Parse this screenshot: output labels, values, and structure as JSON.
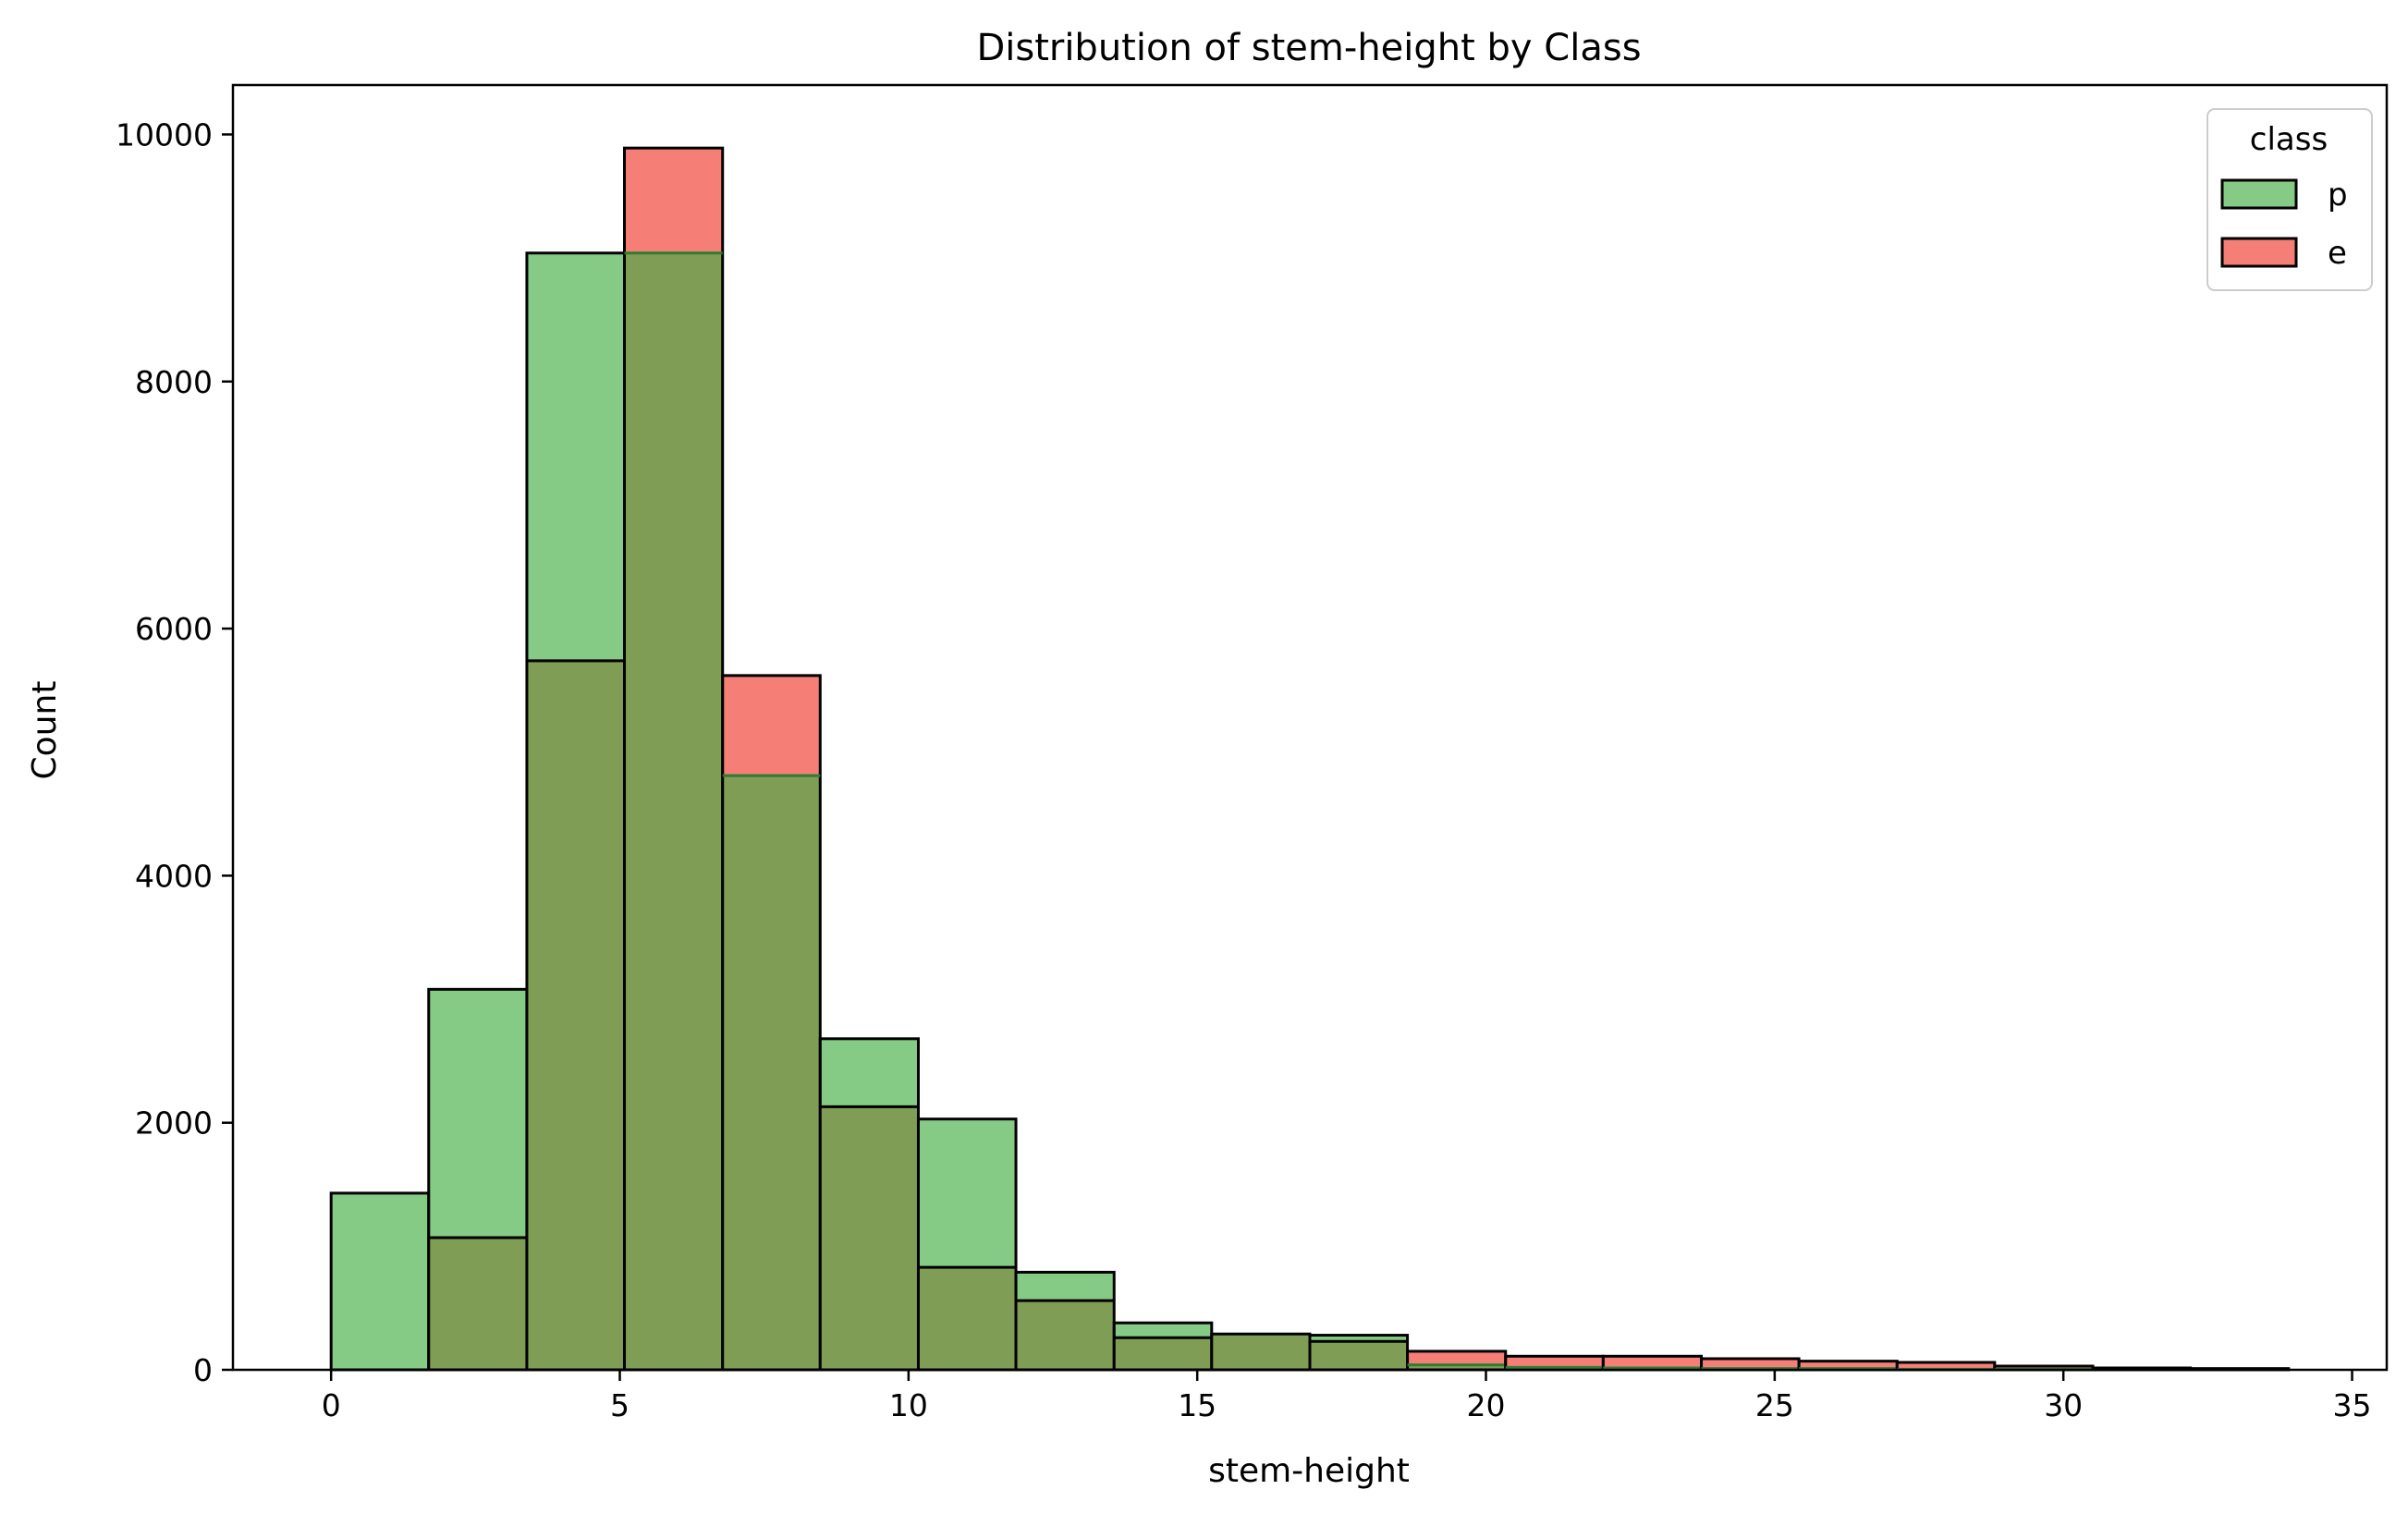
{
  "chart_data": {
    "type": "bar",
    "title": "Distribution of stem-height by Class",
    "xlabel": "stem-height",
    "ylabel": "Count",
    "xlim": [
      -1.7,
      35.6
    ],
    "ylim": [
      0,
      10400
    ],
    "xticks": [
      0,
      5,
      10,
      15,
      20,
      25,
      30,
      35
    ],
    "yticks": [
      0,
      2000,
      4000,
      6000,
      8000,
      10000
    ],
    "grid": false,
    "legend": {
      "title": "class",
      "placement": "top-right"
    },
    "bin_edges": [
      0,
      1.69,
      3.39,
      5.08,
      6.78,
      8.47,
      10.17,
      11.86,
      13.56,
      15.25,
      16.95,
      18.64,
      20.34,
      22.03,
      23.73,
      25.42,
      27.12,
      28.81,
      30.51,
      32.2,
      33.9
    ],
    "series": [
      {
        "name": "p",
        "color": "#5cb85c",
        "values": [
          1430,
          3080,
          9040,
          9040,
          4810,
          2680,
          2030,
          790,
          380,
          290,
          280,
          40,
          20,
          15,
          10,
          10,
          5,
          5,
          0,
          0
        ]
      },
      {
        "name": "e",
        "color": "#f2534a",
        "values": [
          0,
          1070,
          5740,
          9890,
          5620,
          2130,
          830,
          560,
          260,
          290,
          230,
          150,
          110,
          110,
          90,
          70,
          60,
          30,
          15,
          10
        ]
      }
    ],
    "overlap_color": "#7f9d55"
  }
}
